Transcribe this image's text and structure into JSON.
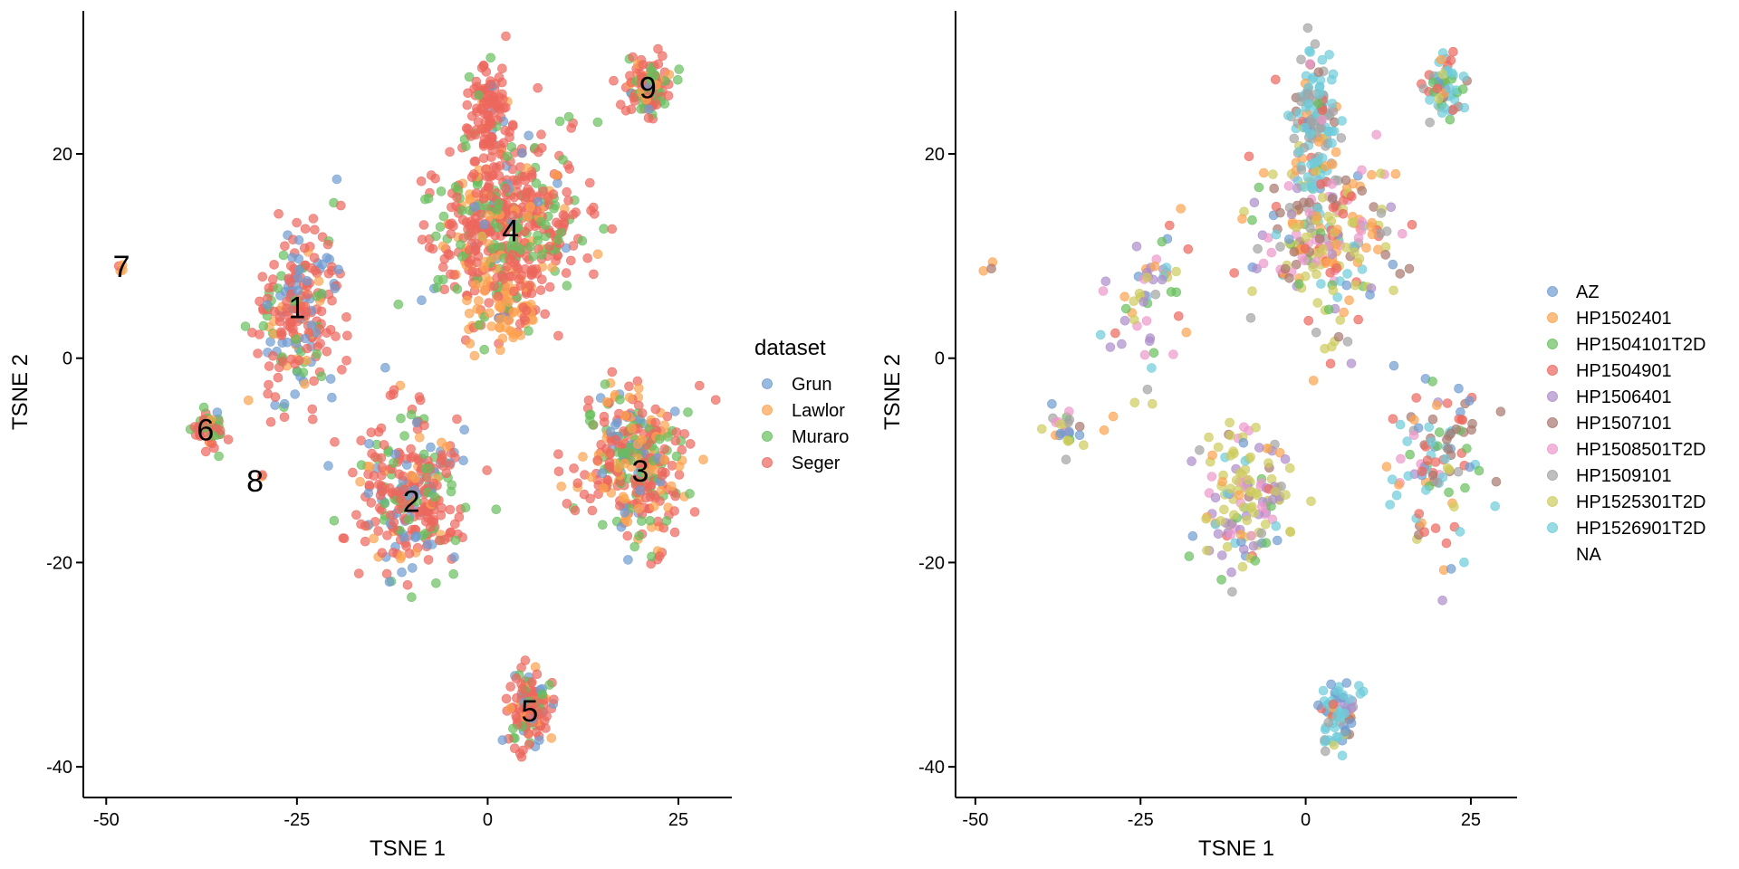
{
  "chart_data": [
    {
      "type": "scatter",
      "panel": "left",
      "xlabel": "TSNE 1",
      "ylabel": "TSNE 2",
      "xlim": [
        -53,
        32
      ],
      "ylim": [
        -43,
        34
      ],
      "xticks": [
        -50,
        -25,
        0,
        25
      ],
      "yticks": [
        -40,
        -20,
        0,
        20
      ],
      "xtick_labels": [
        "-50",
        "-25",
        "0",
        "25"
      ],
      "ytick_labels": [
        "-40",
        "-20",
        "0",
        "20"
      ],
      "legend": {
        "title": "dataset",
        "placement": "right",
        "entries": [
          {
            "name": "Grun",
            "color": "#6F9BD1"
          },
          {
            "name": "Lawlor",
            "color": "#FCA24E"
          },
          {
            "name": "Muraro",
            "color": "#67BF5C"
          },
          {
            "name": "Seger",
            "color": "#ED665D"
          }
        ]
      },
      "cluster_labels": [
        {
          "label": "1",
          "x": -25,
          "y": 5
        },
        {
          "label": "2",
          "x": -10,
          "y": -14
        },
        {
          "label": "3",
          "x": 20,
          "y": -11
        },
        {
          "label": "4",
          "x": 3,
          "y": 12.5
        },
        {
          "label": "5",
          "x": 5.5,
          "y": -34.5
        },
        {
          "label": "6",
          "x": -37,
          "y": -7
        },
        {
          "label": "7",
          "x": -48,
          "y": 9
        },
        {
          "label": "8",
          "x": -30.5,
          "y": -12
        },
        {
          "label": "9",
          "x": 21,
          "y": 26.5
        }
      ],
      "clusters": [
        {
          "id": "1",
          "cx": -24.5,
          "cy": 5,
          "sx": 2.6,
          "sy": 4.6,
          "rot": -0.28,
          "n": 230,
          "mix": {
            "Grun": 0.25,
            "Lawlor": 0.12,
            "Muraro": 0.13,
            "Seger": 0.5
          }
        },
        {
          "id": "2",
          "cx": -10,
          "cy": -13.5,
          "sx": 3.5,
          "sy": 3.6,
          "rot": 0,
          "n": 300,
          "mix": {
            "Grun": 0.18,
            "Lawlor": 0.07,
            "Muraro": 0.15,
            "Seger": 0.6
          }
        },
        {
          "id": "3",
          "cx": 19,
          "cy": -10,
          "sx": 3.5,
          "sy": 3.7,
          "rot": 0,
          "n": 340,
          "mix": {
            "Grun": 0.12,
            "Lawlor": 0.22,
            "Muraro": 0.2,
            "Seger": 0.46
          }
        },
        {
          "id": "4",
          "cx": 2.5,
          "cy": 13,
          "sx": 4.8,
          "sy": 4.2,
          "rot": 0,
          "n": 520,
          "mix": {
            "Grun": 0.05,
            "Lawlor": 0.1,
            "Muraro": 0.2,
            "Seger": 0.65
          }
        },
        {
          "id": "4b",
          "cx": 0,
          "cy": 24,
          "sx": 1.3,
          "sy": 3,
          "rot": 0,
          "n": 110,
          "mix": {
            "Grun": 0.03,
            "Lawlor": 0.05,
            "Muraro": 0.02,
            "Seger": 0.9
          }
        },
        {
          "id": "4c",
          "cx": 2.5,
          "cy": 4.5,
          "sx": 2.6,
          "sy": 1.6,
          "rot": 0,
          "n": 80,
          "mix": {
            "Grun": 0.03,
            "Lawlor": 0.72,
            "Muraro": 0.05,
            "Seger": 0.2
          }
        },
        {
          "id": "5",
          "cx": 5.5,
          "cy": -34,
          "sx": 1.6,
          "sy": 1.9,
          "rot": 0,
          "n": 130,
          "mix": {
            "Grun": 0.12,
            "Lawlor": 0.15,
            "Muraro": 0.2,
            "Seger": 0.53
          }
        },
        {
          "id": "6",
          "cx": -36.5,
          "cy": -7,
          "sx": 1.1,
          "sy": 1.0,
          "rot": 0,
          "n": 45,
          "mix": {
            "Grun": 0.05,
            "Lawlor": 0.1,
            "Muraro": 0.3,
            "Seger": 0.55
          }
        },
        {
          "id": "7",
          "cx": -48,
          "cy": 9,
          "sx": 0.3,
          "sy": 0.3,
          "rot": 0,
          "n": 4,
          "mix": {
            "Grun": 0.0,
            "Lawlor": 0.5,
            "Muraro": 0.0,
            "Seger": 0.5
          }
        },
        {
          "id": "8",
          "cx": -29.5,
          "cy": -11.5,
          "sx": 0.2,
          "sy": 0.2,
          "rot": 0,
          "n": 2,
          "mix": {
            "Grun": 0.0,
            "Lawlor": 0.5,
            "Muraro": 0.0,
            "Seger": 0.5
          }
        },
        {
          "id": "9",
          "cx": 21,
          "cy": 26.5,
          "sx": 1.4,
          "sy": 1.4,
          "rot": 0,
          "n": 120,
          "mix": {
            "Grun": 0.05,
            "Lawlor": 0.15,
            "Muraro": 0.25,
            "Seger": 0.55
          }
        }
      ]
    },
    {
      "type": "scatter",
      "panel": "right",
      "xlabel": "TSNE 1",
      "ylabel": "TSNE 2",
      "xlim": [
        -53,
        32
      ],
      "ylim": [
        -43,
        34
      ],
      "xticks": [
        -50,
        -25,
        0,
        25
      ],
      "yticks": [
        -40,
        -20,
        0,
        20
      ],
      "xtick_labels": [
        "-50",
        "-25",
        "0",
        "25"
      ],
      "ytick_labels": [
        "-40",
        "-20",
        "0",
        "20"
      ],
      "legend": {
        "title": "",
        "placement": "right",
        "entries": [
          {
            "name": "AZ",
            "color": "#6F9BD1"
          },
          {
            "name": "HP1502401",
            "color": "#FCA24E"
          },
          {
            "name": "HP1504101T2D",
            "color": "#67BF5C"
          },
          {
            "name": "HP1504901",
            "color": "#ED665D"
          },
          {
            "name": "HP1506401",
            "color": "#AD8BC9"
          },
          {
            "name": "HP1507101",
            "color": "#A8786E"
          },
          {
            "name": "HP1508501T2D",
            "color": "#ED97CA"
          },
          {
            "name": "HP1509101",
            "color": "#A2A2A2"
          },
          {
            "name": "HP1525301T2D",
            "color": "#CDCC5D"
          },
          {
            "name": "HP1526901T2D",
            "color": "#6DCCDA"
          },
          {
            "name": "NA",
            "color": ""
          }
        ]
      },
      "clusters": [
        {
          "id": "1",
          "cx": -24,
          "cy": 5,
          "sx": 2.4,
          "sy": 4.4,
          "rot": -0.28,
          "n": 60,
          "mix": {
            "AZ": 0.05,
            "HP1502401": 0.08,
            "HP1504101T2D": 0.08,
            "HP1504901": 0.04,
            "HP1506401": 0.35,
            "HP1507101": 0.05,
            "HP1508501T2D": 0.15,
            "HP1509101": 0.02,
            "HP1525301T2D": 0.13,
            "HP1526901T2D": 0.05
          }
        },
        {
          "id": "2",
          "cx": -9,
          "cy": -14,
          "sx": 3.3,
          "sy": 3.4,
          "rot": 0,
          "n": 150,
          "mix": {
            "AZ": 0.06,
            "HP1502401": 0.04,
            "HP1504101T2D": 0.04,
            "HP1504901": 0.03,
            "HP1506401": 0.15,
            "HP1507101": 0.04,
            "HP1508501T2D": 0.14,
            "HP1509101": 0.04,
            "HP1525301T2D": 0.4,
            "HP1526901T2D": 0.06
          }
        },
        {
          "id": "3",
          "cx": 20,
          "cy": -10,
          "sx": 3.4,
          "sy": 4,
          "rot": 0,
          "n": 110,
          "mix": {
            "AZ": 0.08,
            "HP1502401": 0.1,
            "HP1504101T2D": 0.08,
            "HP1504901": 0.18,
            "HP1506401": 0.05,
            "HP1507101": 0.18,
            "HP1508501T2D": 0.04,
            "HP1509101": 0.02,
            "HP1525301T2D": 0.02,
            "HP1526901T2D": 0.25
          }
        },
        {
          "id": "4",
          "cx": 3,
          "cy": 12,
          "sx": 5,
          "sy": 4.5,
          "rot": 0,
          "n": 260,
          "mix": {
            "AZ": 0.04,
            "HP1502401": 0.14,
            "HP1504101T2D": 0.06,
            "HP1504901": 0.14,
            "HP1506401": 0.04,
            "HP1507101": 0.1,
            "HP1508501T2D": 0.14,
            "HP1509101": 0.06,
            "HP1525301T2D": 0.2,
            "HP1526901T2D": 0.08
          }
        },
        {
          "id": "4b",
          "cx": 1.5,
          "cy": 23,
          "sx": 1.7,
          "sy": 3.2,
          "rot": 0,
          "n": 140,
          "mix": {
            "AZ": 0.02,
            "HP1502401": 0.05,
            "HP1504101T2D": 0.02,
            "HP1504901": 0.03,
            "HP1506401": 0.01,
            "HP1507101": 0.05,
            "HP1508501T2D": 0.02,
            "HP1509101": 0.35,
            "HP1525301T2D": 0.02,
            "HP1526901T2D": 0.43
          }
        },
        {
          "id": "5",
          "cx": 5,
          "cy": -34.5,
          "sx": 1.5,
          "sy": 1.5,
          "rot": 0,
          "n": 70,
          "mix": {
            "AZ": 0.15,
            "HP1502401": 0.04,
            "HP1504101T2D": 0.04,
            "HP1504901": 0.05,
            "HP1506401": 0.02,
            "HP1507101": 0.04,
            "HP1508501T2D": 0.02,
            "HP1509101": 0.04,
            "HP1525301T2D": 0.05,
            "HP1526901T2D": 0.55
          }
        },
        {
          "id": "6",
          "cx": -36.5,
          "cy": -7,
          "sx": 1.1,
          "sy": 1.0,
          "rot": 0,
          "n": 25,
          "mix": {
            "AZ": 0.15,
            "HP1502401": 0.1,
            "HP1504101T2D": 0.15,
            "HP1504901": 0.05,
            "HP1506401": 0.1,
            "HP1507101": 0.05,
            "HP1508501T2D": 0.05,
            "HP1509101": 0.15,
            "HP1525301T2D": 0.2,
            "HP1526901T2D": 0.0
          }
        },
        {
          "id": "7",
          "cx": -48,
          "cy": 9,
          "sx": 0.3,
          "sy": 0.3,
          "rot": 0,
          "n": 3,
          "mix": {
            "AZ": 0.34,
            "HP1502401": 0.33,
            "HP1504101T2D": 0.0,
            "HP1504901": 0.0,
            "HP1506401": 0.0,
            "HP1507101": 0.33,
            "HP1508501T2D": 0.0,
            "HP1509101": 0.0,
            "HP1525301T2D": 0.0,
            "HP1526901T2D": 0.0
          }
        },
        {
          "id": "9",
          "cx": 21,
          "cy": 26.5,
          "sx": 1.4,
          "sy": 1.4,
          "rot": 0,
          "n": 60,
          "mix": {
            "AZ": 0.05,
            "HP1502401": 0.1,
            "HP1504101T2D": 0.15,
            "HP1504901": 0.15,
            "HP1506401": 0.02,
            "HP1507101": 0.03,
            "HP1508501T2D": 0.02,
            "HP1509101": 0.03,
            "HP1525301T2D": 0.05,
            "HP1526901T2D": 0.4
          }
        }
      ]
    }
  ]
}
